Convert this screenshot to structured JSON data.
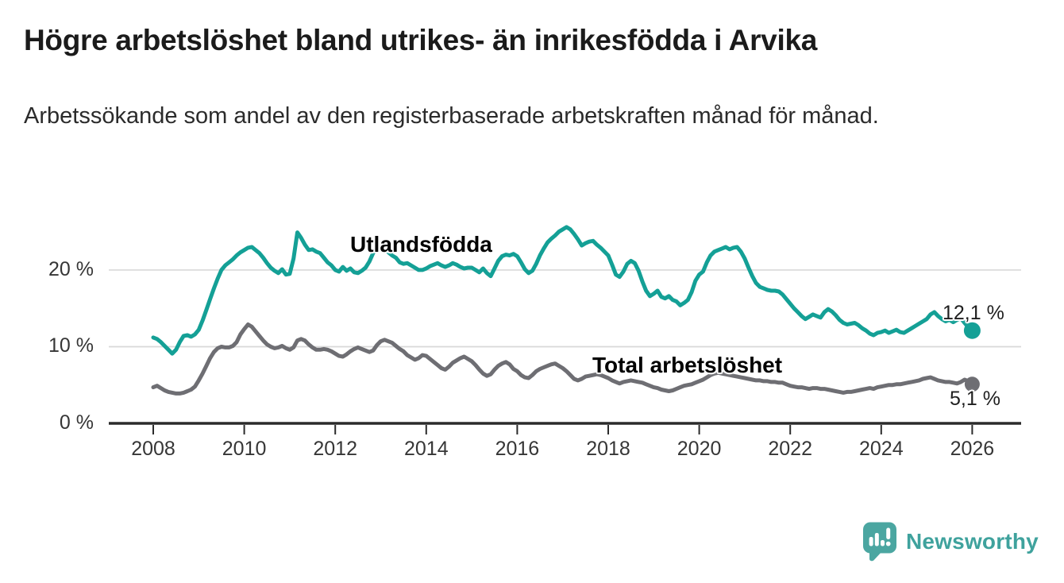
{
  "header": {
    "title": "Högre arbetslöshet bland utrikes- än inrikesfödda i Arvika",
    "subtitle": "Arbetssökande som andel av den registerbaserade arbetskraften månad för månad."
  },
  "chart_data": {
    "type": "line",
    "title": "Högre arbetslöshet bland utrikes- än inrikesfödda i Arvika",
    "subtitle": "Arbetssökande som andel av den registerbaserade arbetskraften månad för månad.",
    "unit": "%",
    "x_start_year": 2008,
    "x_step_months": 1,
    "xlim": [
      2007.0,
      2027.1
    ],
    "ylim": [
      0,
      27.5
    ],
    "grid": "horizontal",
    "x_ticks": [
      2008,
      2010,
      2012,
      2014,
      2016,
      2018,
      2020,
      2022,
      2024,
      2026
    ],
    "y_ticks": [
      {
        "value": 0,
        "label": "0 %"
      },
      {
        "value": 10,
        "label": "10 %"
      },
      {
        "value": 20,
        "label": "20 %"
      }
    ],
    "colors": {
      "teal": "#14A096",
      "gray": "#6E6E73",
      "grid": "#d9d9d9",
      "axis": "#2b2b2b"
    },
    "series": [
      {
        "name": "Utlandsfödda",
        "color": "#14A096",
        "end_label": "12,1 %",
        "end_value": 12.1,
        "values": [
          11.2,
          11.0,
          10.6,
          10.1,
          9.6,
          9.1,
          9.6,
          10.6,
          11.4,
          11.5,
          11.3,
          11.6,
          12.2,
          13.4,
          14.8,
          16.2,
          17.6,
          18.9,
          20.0,
          20.6,
          21.0,
          21.4,
          21.9,
          22.3,
          22.6,
          22.9,
          23.0,
          22.6,
          22.2,
          21.6,
          20.9,
          20.3,
          19.9,
          19.6,
          20.1,
          19.4,
          19.5,
          21.5,
          24.9,
          24.2,
          23.3,
          22.6,
          22.7,
          22.4,
          22.2,
          21.6,
          21.0,
          20.6,
          20.0,
          19.8,
          20.4,
          19.9,
          20.2,
          19.7,
          19.6,
          19.9,
          20.3,
          21.1,
          22.2,
          22.8,
          22.9,
          22.7,
          22.3,
          21.9,
          21.6,
          21.0,
          20.8,
          20.9,
          20.6,
          20.3,
          20.0,
          20.0,
          20.2,
          20.5,
          20.7,
          20.9,
          20.6,
          20.4,
          20.6,
          20.9,
          20.7,
          20.4,
          20.2,
          20.3,
          20.3,
          20.0,
          19.7,
          20.2,
          19.6,
          19.2,
          20.2,
          21.2,
          21.8,
          22.0,
          21.9,
          22.1,
          21.8,
          21.0,
          20.1,
          19.6,
          19.9,
          20.8,
          21.9,
          22.8,
          23.6,
          24.1,
          24.5,
          25.0,
          25.3,
          25.6,
          25.3,
          24.7,
          24.0,
          23.2,
          23.5,
          23.7,
          23.8,
          23.3,
          22.9,
          22.4,
          21.9,
          20.7,
          19.4,
          19.1,
          19.8,
          20.8,
          21.2,
          20.9,
          19.9,
          18.5,
          17.3,
          16.6,
          16.9,
          17.3,
          16.5,
          16.3,
          16.6,
          16.1,
          15.9,
          15.4,
          15.7,
          16.1,
          17.1,
          18.6,
          19.4,
          19.8,
          21.0,
          21.9,
          22.4,
          22.6,
          22.8,
          23.0,
          22.7,
          22.9,
          23.0,
          22.4,
          21.5,
          20.3,
          19.2,
          18.3,
          17.8,
          17.6,
          17.4,
          17.3,
          17.3,
          17.2,
          16.8,
          16.2,
          15.6,
          15.0,
          14.5,
          14.0,
          13.6,
          13.9,
          14.2,
          14.0,
          13.8,
          14.5,
          14.9,
          14.6,
          14.1,
          13.5,
          13.1,
          12.9,
          13.0,
          13.1,
          12.8,
          12.4,
          12.1,
          11.7,
          11.5,
          11.8,
          11.9,
          12.1,
          11.8,
          12.0,
          12.2,
          11.9,
          11.8,
          12.1,
          12.4,
          12.7,
          13.0,
          13.3,
          13.6,
          14.2,
          14.5,
          14.0,
          13.6,
          13.3,
          13.5,
          13.2,
          13.5,
          13.7,
          13.1,
          12.5,
          12.1
        ]
      },
      {
        "name": "Total arbetslöshet",
        "color": "#6E6E73",
        "end_label": "5,1 %",
        "end_value": 5.1,
        "values": [
          4.7,
          4.9,
          4.6,
          4.3,
          4.1,
          4.0,
          3.9,
          3.9,
          4.0,
          4.2,
          4.4,
          4.8,
          5.6,
          6.5,
          7.5,
          8.5,
          9.3,
          9.8,
          10.0,
          9.9,
          9.9,
          10.1,
          10.6,
          11.6,
          12.3,
          12.9,
          12.6,
          12.0,
          11.4,
          10.8,
          10.3,
          10.0,
          9.8,
          9.9,
          10.1,
          9.8,
          9.6,
          9.9,
          10.8,
          11.0,
          10.8,
          10.3,
          9.9,
          9.6,
          9.6,
          9.7,
          9.6,
          9.4,
          9.1,
          8.8,
          8.7,
          9.0,
          9.4,
          9.7,
          9.9,
          9.7,
          9.5,
          9.3,
          9.5,
          10.2,
          10.7,
          10.9,
          10.7,
          10.5,
          10.1,
          9.7,
          9.4,
          8.9,
          8.6,
          8.3,
          8.5,
          8.9,
          8.8,
          8.4,
          8.0,
          7.6,
          7.2,
          7.0,
          7.4,
          7.9,
          8.2,
          8.5,
          8.7,
          8.4,
          8.1,
          7.6,
          7.0,
          6.5,
          6.2,
          6.4,
          7.0,
          7.5,
          7.8,
          8.0,
          7.7,
          7.1,
          6.8,
          6.3,
          6.0,
          5.9,
          6.3,
          6.8,
          7.1,
          7.3,
          7.5,
          7.7,
          7.8,
          7.5,
          7.2,
          6.8,
          6.3,
          5.8,
          5.6,
          5.8,
          6.1,
          6.2,
          6.3,
          6.4,
          6.3,
          6.1,
          5.9,
          5.6,
          5.4,
          5.2,
          5.4,
          5.5,
          5.6,
          5.5,
          5.4,
          5.3,
          5.1,
          4.9,
          4.7,
          4.6,
          4.4,
          4.3,
          4.2,
          4.3,
          4.5,
          4.7,
          4.9,
          5.0,
          5.1,
          5.3,
          5.5,
          5.7,
          6.0,
          6.3,
          6.5,
          6.6,
          6.5,
          6.4,
          6.3,
          6.2,
          6.1,
          6.0,
          5.9,
          5.8,
          5.7,
          5.6,
          5.6,
          5.5,
          5.5,
          5.4,
          5.4,
          5.3,
          5.3,
          5.1,
          4.9,
          4.8,
          4.7,
          4.7,
          4.6,
          4.5,
          4.6,
          4.6,
          4.5,
          4.5,
          4.4,
          4.3,
          4.2,
          4.1,
          4.0,
          4.1,
          4.1,
          4.2,
          4.3,
          4.4,
          4.5,
          4.6,
          4.5,
          4.7,
          4.8,
          4.9,
          5.0,
          5.0,
          5.1,
          5.1,
          5.2,
          5.3,
          5.4,
          5.5,
          5.6,
          5.8,
          5.9,
          6.0,
          5.8,
          5.6,
          5.5,
          5.4,
          5.4,
          5.3,
          5.2,
          5.4,
          5.7,
          5.5,
          5.1
        ]
      }
    ]
  },
  "footer": {
    "brand": "Newsworthy"
  }
}
